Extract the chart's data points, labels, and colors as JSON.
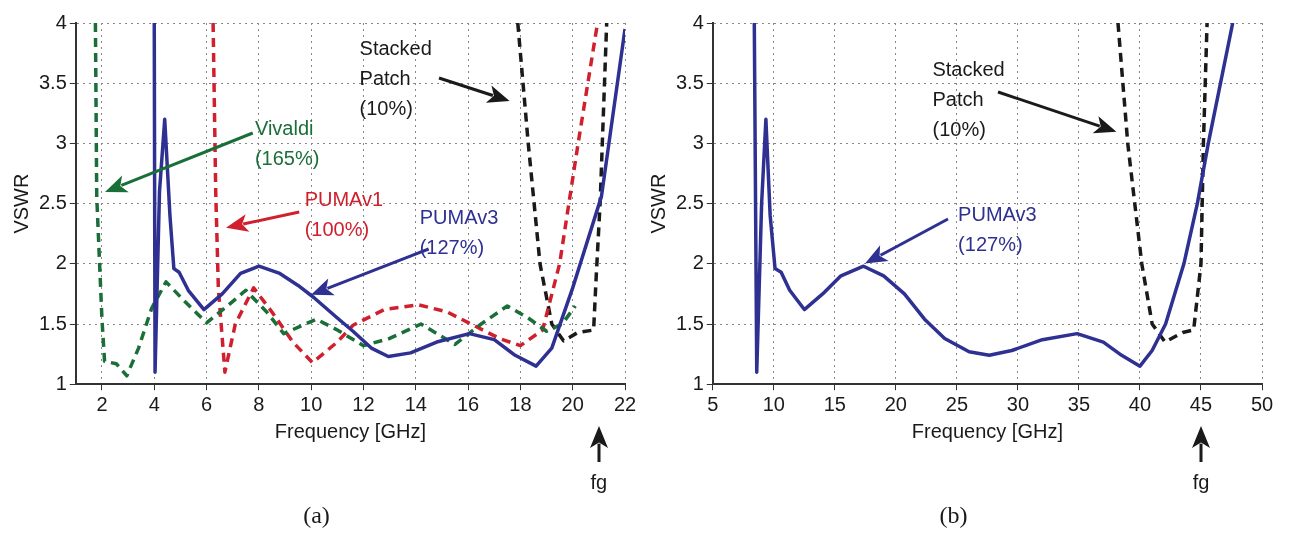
{
  "chart_data": [
    {
      "type": "line",
      "title": "(a)",
      "xlabel": "Frequency [GHz]",
      "ylabel": "VSWR",
      "xlim": [
        1,
        22
      ],
      "xticks": [
        2,
        4,
        6,
        8,
        10,
        12,
        14,
        16,
        18,
        20,
        22
      ],
      "ylim": [
        1,
        4
      ],
      "yticks": [
        1,
        1.5,
        2,
        2.5,
        3,
        3.5,
        4
      ],
      "grid": true,
      "legend": false,
      "marker": "none",
      "series": [
        {
          "color": "#2e3192",
          "line_style": "solid",
          "x": [
            4,
            4.03,
            4.2,
            4.4,
            4.6,
            4.75,
            4.95,
            5.3,
            5.9,
            6.6,
            7.3,
            8,
            8.8,
            9.5,
            10.1,
            11,
            11.6,
            12.3,
            12.95,
            13.8,
            14.8,
            16.05,
            17,
            17.8,
            18.6,
            19.2,
            20,
            21.1,
            22
          ],
          "values": [
            4,
            1.1,
            2.6,
            3.2,
            2.4,
            1.96,
            1.93,
            1.78,
            1.62,
            1.75,
            1.92,
            1.98,
            1.92,
            1.82,
            1.72,
            1.55,
            1.44,
            1.3,
            1.23,
            1.26,
            1.35,
            1.42,
            1.37,
            1.24,
            1.15,
            1.3,
            1.8,
            2.56,
            3.95
          ]
        },
        {
          "color": "#1a6e38",
          "line_style": "dashed",
          "x": [
            1.75,
            1.8,
            2,
            2.1,
            2.55,
            2.95,
            3.4,
            3.9,
            4.45,
            5.2,
            6,
            6.8,
            7.5,
            8.3,
            8.95,
            10.2,
            11,
            12,
            13,
            14.2,
            15.5,
            16.5,
            17.5,
            18.3,
            19,
            19.6,
            20.1
          ],
          "values": [
            4,
            2.56,
            1.54,
            1.19,
            1.17,
            1.07,
            1.3,
            1.63,
            1.85,
            1.68,
            1.51,
            1.65,
            1.78,
            1.6,
            1.42,
            1.54,
            1.45,
            1.32,
            1.38,
            1.5,
            1.33,
            1.5,
            1.65,
            1.55,
            1.44,
            1.5,
            1.65
          ]
        },
        {
          "color": "#d0202e",
          "line_style": "dashed",
          "x": [
            6.25,
            6.35,
            6.45,
            6.7,
            7.1,
            7.8,
            8.5,
            9.3,
            10.05,
            11,
            11.6,
            12.8,
            14.1,
            15.2,
            16.2,
            17.2,
            18,
            18.85,
            19.5,
            20.2,
            20.95
          ],
          "values": [
            4,
            2.6,
            1.8,
            1.1,
            1.5,
            1.8,
            1.6,
            1.35,
            1.18,
            1.35,
            1.49,
            1.62,
            1.66,
            1.6,
            1.49,
            1.38,
            1.32,
            1.45,
            2,
            2.99,
            4
          ]
        },
        {
          "color": "#1a1a1a",
          "line_style": "dashed",
          "x": [
            17.9,
            18.3,
            18.75,
            19.2,
            19.65,
            20.2,
            20.8,
            20.9,
            21.05,
            21.3
          ],
          "values": [
            4,
            3,
            2,
            1.5,
            1.36,
            1.43,
            1.45,
            1.9,
            2.51,
            4
          ]
        }
      ],
      "annotations": [
        "Vivaldi\n(165%)",
        "PUMAv1\n(100%)",
        "PUMAv3\n(127%)",
        "Stacked\nPatch\n(10%)",
        "fg"
      ]
    },
    {
      "type": "line",
      "title": "(b)",
      "xlabel": "Frequency [GHz]",
      "ylabel": "VSWR",
      "xlim": [
        5,
        50
      ],
      "xticks": [
        5,
        10,
        15,
        20,
        25,
        30,
        35,
        40,
        45,
        50
      ],
      "ylim": [
        1,
        4
      ],
      "yticks": [
        1,
        1.5,
        2,
        2.5,
        3,
        3.5,
        4
      ],
      "grid": true,
      "legend": false,
      "marker": "none",
      "series": [
        {
          "color": "#2e3192",
          "line_style": "solid",
          "x": [
            8.4,
            8.6,
            9,
            9.35,
            9.7,
            10.1,
            10.6,
            11.3,
            12.5,
            14,
            15.5,
            17.35,
            19,
            20.7,
            22.35,
            24,
            26,
            27.65,
            29.5,
            32,
            34.85,
            37,
            38.5,
            40,
            41,
            42.1,
            43.6,
            44.7,
            45.6,
            47.6
          ],
          "values": [
            4,
            1.1,
            2.5,
            3.2,
            2.4,
            1.96,
            1.93,
            1.78,
            1.62,
            1.75,
            1.9,
            1.98,
            1.9,
            1.75,
            1.54,
            1.38,
            1.27,
            1.24,
            1.28,
            1.37,
            1.42,
            1.35,
            1.24,
            1.15,
            1.28,
            1.5,
            2,
            2.5,
            3,
            4
          ]
        },
        {
          "color": "#1a1a1a",
          "line_style": "dashed",
          "x": [
            38.2,
            39,
            40.15,
            41,
            42.06,
            43.5,
            44.4,
            45,
            45.2,
            45.5
          ],
          "values": [
            4,
            3,
            2,
            1.5,
            1.35,
            1.43,
            1.45,
            2,
            3,
            4
          ]
        }
      ],
      "annotations": [
        "Stacked\nPatch\n(10%)",
        "PUMAv3\n(127%)",
        "fg"
      ]
    }
  ]
}
